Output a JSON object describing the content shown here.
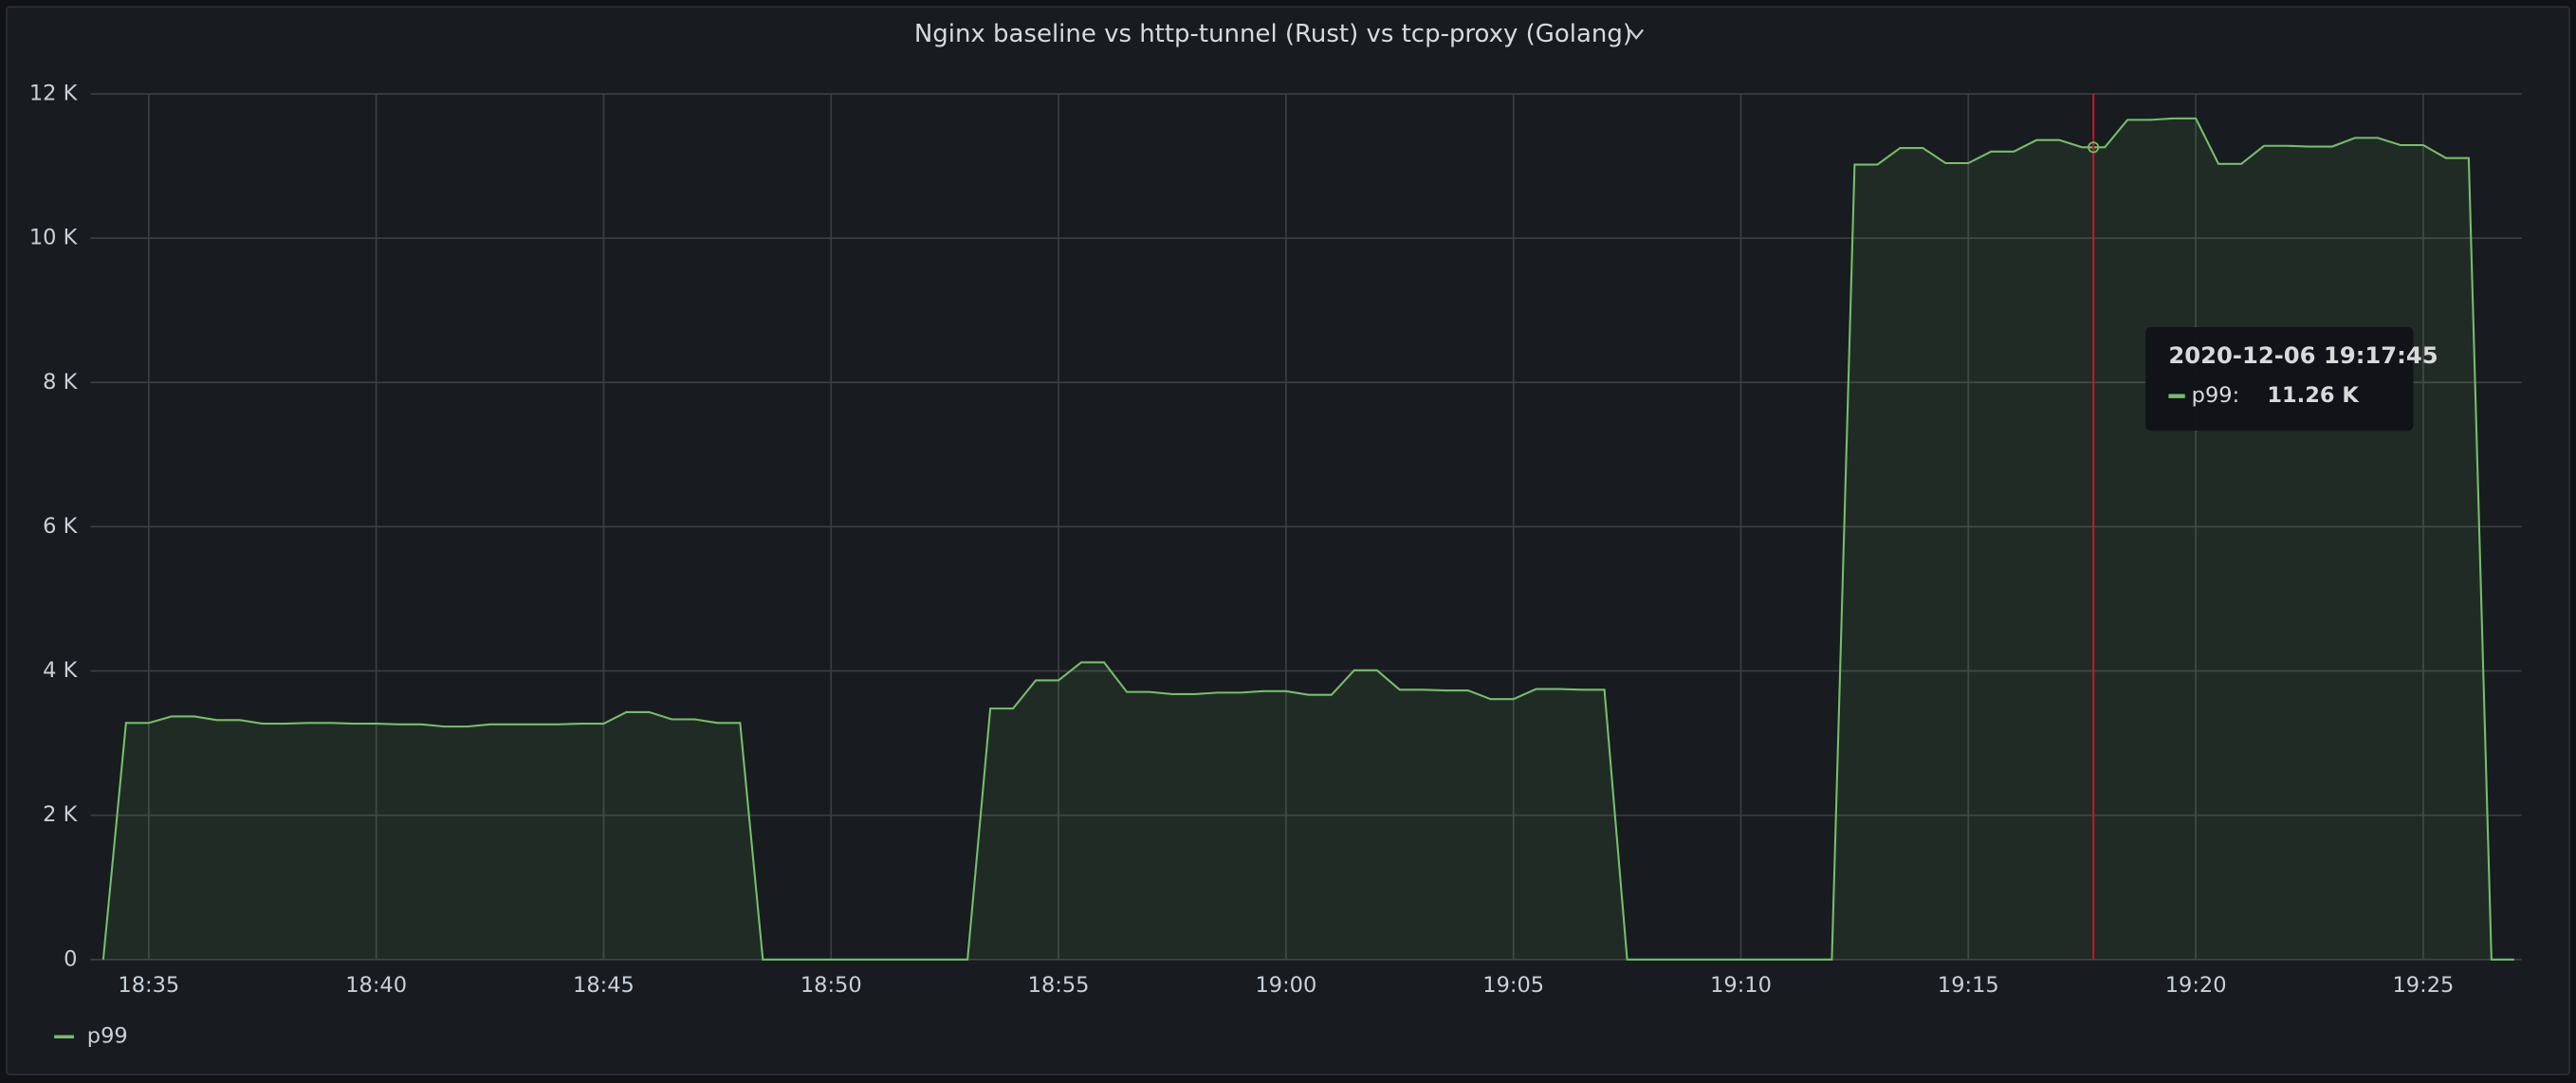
{
  "chart_data": {
    "type": "line",
    "title": "Nginx baseline vs http-tunnel (Rust) vs tcp-proxy (Golang)",
    "x": [
      "18:34:00",
      "18:34:30",
      "18:35:00",
      "18:35:30",
      "18:36:00",
      "18:36:30",
      "18:37:00",
      "18:37:30",
      "18:38:00",
      "18:38:30",
      "18:39:00",
      "18:39:30",
      "18:40:00",
      "18:40:30",
      "18:41:00",
      "18:41:30",
      "18:42:00",
      "18:42:30",
      "18:43:00",
      "18:43:30",
      "18:44:00",
      "18:44:30",
      "18:45:00",
      "18:45:30",
      "18:46:00",
      "18:46:30",
      "18:47:00",
      "18:47:30",
      "18:48:00",
      "18:48:30",
      "18:49:00",
      "18:49:30",
      "18:50:00",
      "18:50:30",
      "18:51:00",
      "18:51:30",
      "18:52:00",
      "18:52:30",
      "18:53:00",
      "18:53:30",
      "18:54:00",
      "18:54:30",
      "18:55:00",
      "18:55:30",
      "18:56:00",
      "18:56:30",
      "18:57:00",
      "18:57:30",
      "18:58:00",
      "18:58:30",
      "18:59:00",
      "18:59:30",
      "19:00:00",
      "19:00:30",
      "19:01:00",
      "19:01:30",
      "19:02:00",
      "19:02:30",
      "19:03:00",
      "19:03:30",
      "19:04:00",
      "19:04:30",
      "19:05:00",
      "19:05:30",
      "19:06:00",
      "19:06:30",
      "19:07:00",
      "19:07:30",
      "19:08:00",
      "19:08:30",
      "19:09:00",
      "19:09:30",
      "19:10:00",
      "19:10:30",
      "19:11:00",
      "19:11:30",
      "19:12:00",
      "19:12:30",
      "19:13:00",
      "19:13:30",
      "19:14:00",
      "19:14:30",
      "19:15:00",
      "19:15:30",
      "19:16:00",
      "19:16:30",
      "19:17:00",
      "19:17:30",
      "19:18:00",
      "19:18:30",
      "19:19:00",
      "19:19:30",
      "19:20:00",
      "19:20:30",
      "19:21:00",
      "19:21:30",
      "19:22:00",
      "19:22:30",
      "19:23:00",
      "19:23:30",
      "19:24:00",
      "19:24:30",
      "19:25:00",
      "19:25:30",
      "19:26:00",
      "19:26:30",
      "19:27:00"
    ],
    "series": [
      {
        "name": "p99",
        "color": "#73bf69",
        "values": [
          0,
          3280,
          3280,
          3370,
          3370,
          3320,
          3320,
          3270,
          3270,
          3280,
          3280,
          3270,
          3270,
          3260,
          3260,
          3230,
          3230,
          3260,
          3260,
          3260,
          3260,
          3270,
          3270,
          3430,
          3430,
          3330,
          3330,
          3280,
          3280,
          0,
          0,
          0,
          0,
          0,
          0,
          0,
          0,
          0,
          0,
          3480,
          3480,
          3870,
          3870,
          4120,
          4120,
          3710,
          3710,
          3680,
          3680,
          3700,
          3700,
          3720,
          3720,
          3670,
          3670,
          4010,
          4010,
          3740,
          3740,
          3730,
          3730,
          3610,
          3610,
          3750,
          3750,
          3740,
          3740,
          0,
          0,
          0,
          0,
          0,
          0,
          0,
          0,
          0,
          0,
          11020,
          11020,
          11250,
          11250,
          11040,
          11040,
          11200,
          11200,
          11360,
          11360,
          11260,
          11260,
          11640,
          11640,
          11660,
          11660,
          11030,
          11030,
          11280,
          11280,
          11270,
          11270,
          11390,
          11390,
          11290,
          11290,
          11110,
          11110,
          0,
          0
        ]
      }
    ],
    "xlim": [
      "18:33:43",
      "19:27:10"
    ],
    "xticks": [
      "18:35",
      "18:40",
      "18:45",
      "18:50",
      "18:55",
      "19:00",
      "19:05",
      "19:10",
      "19:15",
      "19:20",
      "19:25"
    ],
    "ylim": [
      0,
      12000
    ],
    "yticks": [
      0,
      {
        "value": 2000,
        "label": "2 K"
      },
      {
        "value": 4000,
        "label": "4 K"
      },
      {
        "value": 6000,
        "label": "6 K"
      },
      {
        "value": 8000,
        "label": "8 K"
      },
      {
        "value": 10000,
        "label": "10 K"
      },
      {
        "value": 12000,
        "label": "12 K"
      }
    ],
    "grid": true,
    "legend": "bottom-left",
    "tooltip": {
      "time": "2020-12-06 19:17:45",
      "series": "p99:",
      "value": 11260,
      "value_label": "11.26 K"
    }
  }
}
